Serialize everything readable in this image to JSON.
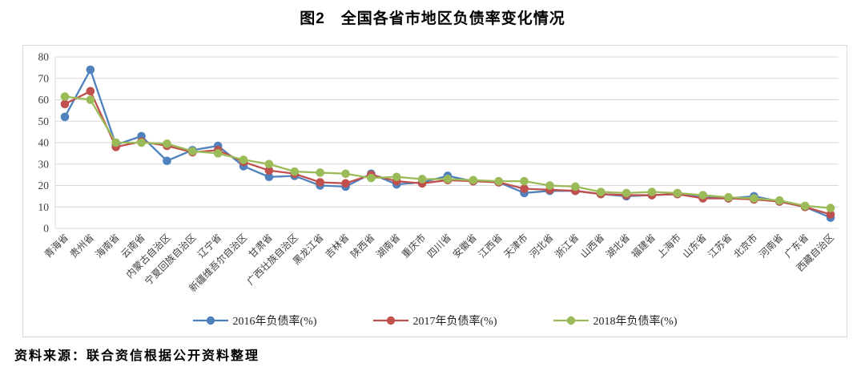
{
  "title": "图2　全国各省市地区负债率变化情况",
  "source_note": "资料来源：联合资信根据公开资料整理",
  "colors": {
    "series_2016": "#4f81bd",
    "series_2017": "#c0504d",
    "series_2018": "#9bbb59",
    "gridline": "#d9d9d9",
    "axis_line": "#d9d9d9",
    "chart_border": "#d9d9d9",
    "axis_text": "#404040"
  },
  "chart_data": {
    "type": "line",
    "title": "图2　全国各省市地区负债率变化情况",
    "categories": [
      "青海省",
      "贵州省",
      "海南省",
      "云南省",
      "内蒙古自治区",
      "宁夏回族自治区",
      "辽宁省",
      "新疆维吾尔自治区",
      "甘肃省",
      "广西壮族自治区",
      "黑龙江省",
      "吉林省",
      "陕西省",
      "湖南省",
      "重庆市",
      "四川省",
      "安徽省",
      "江西省",
      "天津市",
      "河北省",
      "浙江省",
      "山西省",
      "湖北省",
      "福建省",
      "上海市",
      "山东省",
      "江苏省",
      "北京市",
      "河南省",
      "广东省",
      "西藏自治区"
    ],
    "series": [
      {
        "name": "2016年负债率(%)",
        "color_key": "series_2016",
        "values": [
          52,
          74,
          39,
          43,
          31.5,
          36.5,
          38.5,
          29,
          24,
          24.5,
          20,
          19.5,
          25.5,
          20.5,
          21.5,
          24.5,
          22,
          21.5,
          16.5,
          17.5,
          17.5,
          16,
          15,
          15.5,
          16,
          14.5,
          14,
          15,
          12.5,
          10,
          5
        ]
      },
      {
        "name": "2017年负债率(%)",
        "color_key": "series_2017",
        "values": [
          58,
          64,
          38,
          40.5,
          38.5,
          35.5,
          36.5,
          31,
          27,
          25.5,
          21.5,
          21,
          25,
          22,
          21,
          22.5,
          22,
          21.5,
          18.5,
          18,
          17.5,
          16,
          15.5,
          15.5,
          16,
          14,
          14,
          13.5,
          12.5,
          10,
          6.5
        ]
      },
      {
        "name": "2018年负债率(%)",
        "color_key": "series_2018",
        "values": [
          61.5,
          60,
          40,
          40,
          39.5,
          36,
          35,
          32,
          30,
          26.5,
          26,
          25.5,
          23.5,
          24,
          23,
          23,
          22.5,
          22,
          22,
          20,
          19.5,
          17,
          16.5,
          17,
          16.5,
          15.5,
          14.5,
          14,
          13,
          10.5,
          9.5
        ]
      }
    ],
    "ylim": [
      0,
      80
    ],
    "ytick_step": 10,
    "grid": true,
    "xlabel": "",
    "ylabel": "",
    "legend_position": "bottom",
    "x_label_rotation": -45
  }
}
